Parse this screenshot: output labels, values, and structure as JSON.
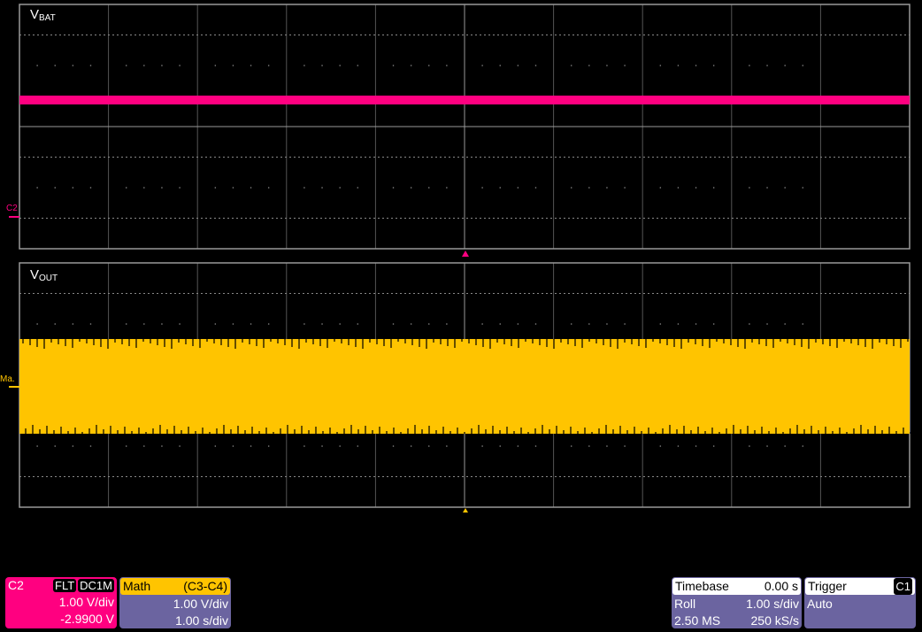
{
  "panels": [
    {
      "label_main": "V",
      "label_sub": "BAT",
      "marker": "C2",
      "trace_color": "#ff0080"
    },
    {
      "label_main": "V",
      "label_sub": "OUT",
      "marker": "Ma.",
      "trace_color": "#ffc400"
    }
  ],
  "channel": {
    "name": "C2",
    "tags": [
      "FLT",
      "DC1M"
    ],
    "vdiv": "1.00 V/div",
    "offset": "-2.9900 V",
    "color": "#ff0080"
  },
  "math": {
    "name": "Math",
    "expr": "(C3-C4)",
    "vdiv": "1.00 V/div",
    "tdiv": "1.00 s/div",
    "color": "#ffc400"
  },
  "timebase": {
    "title": "Timebase",
    "delay": "0.00 s",
    "mode": "Roll",
    "tdiv": "1.00 s/div",
    "samples": "2.50 MS",
    "rate": "250 kS/s"
  },
  "trigger": {
    "title": "Trigger",
    "source": "C1",
    "mode": "Auto"
  },
  "colors": {
    "panel_bg": "#6b64a0",
    "grid": "#8a8a8a"
  }
}
